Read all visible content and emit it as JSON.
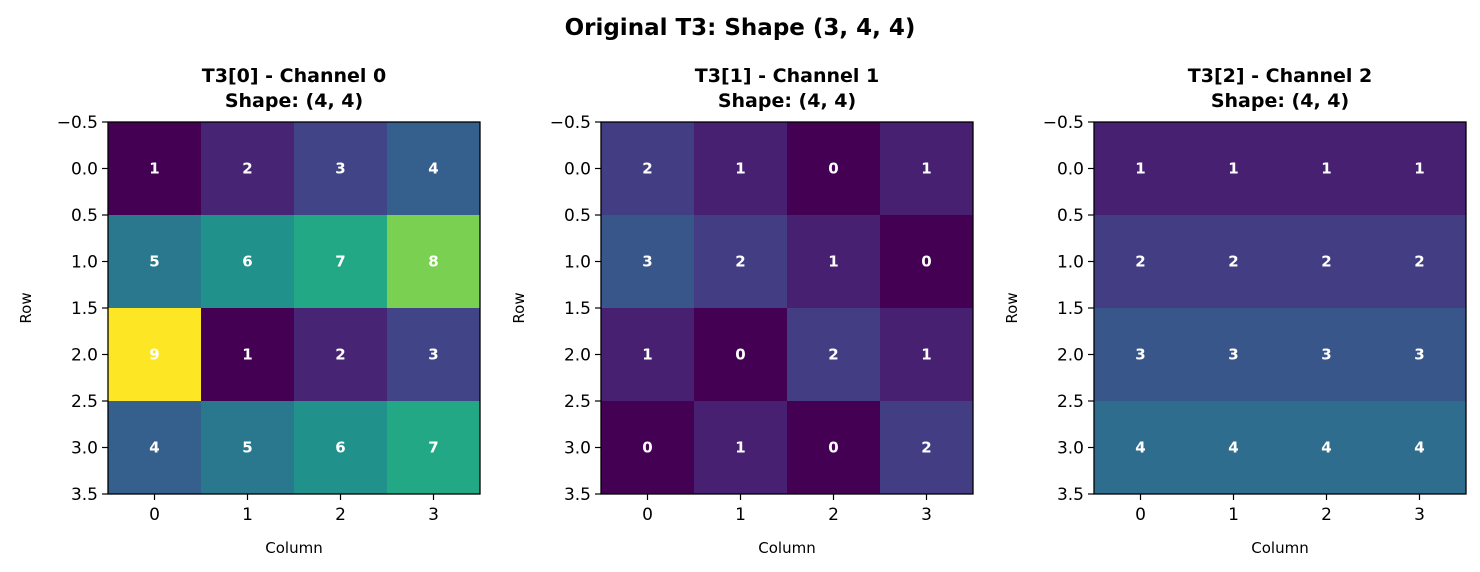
{
  "figure": {
    "suptitle": "Original T3: Shape (3, 4, 4)"
  },
  "chart_data": [
    {
      "type": "heatmap",
      "title": "T3[0] - Channel 0\nShape: (4, 4)",
      "xlabel": "Column",
      "ylabel": "Row",
      "xticks": [
        "0",
        "1",
        "2",
        "3"
      ],
      "yticks": [
        "−0.5",
        "0.0",
        "0.5",
        "1.0",
        "1.5",
        "2.0",
        "2.5",
        "3.0",
        "3.5"
      ],
      "xlim": [
        -0.5,
        3.5
      ],
      "ylim": [
        3.5,
        -0.5
      ],
      "colormap": "viridis",
      "vmin": 1,
      "vmax": 9,
      "values": [
        [
          1,
          2,
          3,
          4
        ],
        [
          5,
          6,
          7,
          8
        ],
        [
          9,
          1,
          2,
          3
        ],
        [
          4,
          5,
          6,
          7
        ]
      ]
    },
    {
      "type": "heatmap",
      "title": "T3[1] - Channel 1\nShape: (4, 4)",
      "xlabel": "Column",
      "ylabel": "Row",
      "xticks": [
        "0",
        "1",
        "2",
        "3"
      ],
      "yticks": [
        "−0.5",
        "0.0",
        "0.5",
        "1.0",
        "1.5",
        "2.0",
        "2.5",
        "3.0",
        "3.5"
      ],
      "xlim": [
        -0.5,
        3.5
      ],
      "ylim": [
        3.5,
        -0.5
      ],
      "colormap": "viridis",
      "vmin": 0,
      "vmax": 9,
      "values": [
        [
          2,
          1,
          0,
          1
        ],
        [
          3,
          2,
          1,
          0
        ],
        [
          1,
          0,
          2,
          1
        ],
        [
          0,
          1,
          0,
          2
        ]
      ]
    },
    {
      "type": "heatmap",
      "title": "T3[2] - Channel 2\nShape: (4, 4)",
      "xlabel": "Column",
      "ylabel": "Row",
      "xticks": [
        "0",
        "1",
        "2",
        "3"
      ],
      "yticks": [
        "−0.5",
        "0.0",
        "0.5",
        "1.0",
        "1.5",
        "2.0",
        "2.5",
        "3.0",
        "3.5"
      ],
      "xlim": [
        -0.5,
        3.5
      ],
      "ylim": [
        3.5,
        -0.5
      ],
      "colormap": "viridis",
      "vmin": 0,
      "vmax": 9,
      "values": [
        [
          1,
          1,
          1,
          1
        ],
        [
          2,
          2,
          2,
          2
        ],
        [
          3,
          3,
          3,
          3
        ],
        [
          4,
          4,
          4,
          4
        ]
      ]
    }
  ]
}
